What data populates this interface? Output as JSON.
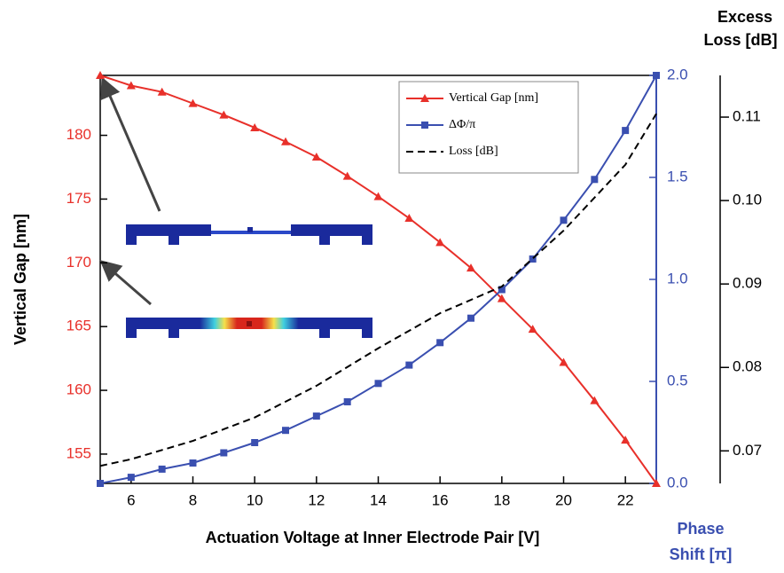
{
  "chart_data": {
    "type": "line",
    "xlabel": "Actuation Voltage at Inner Electrode Pair [V]",
    "ylabel": "Vertical Gap [nm]",
    "y2label_line1": "Phase",
    "y2label_line2": "Shift [π]",
    "y3label_line1": "Excess",
    "y3label_line2": "Loss [dB]",
    "xlim": [
      5,
      23
    ],
    "xticks": [
      6,
      8,
      10,
      12,
      14,
      16,
      18,
      20,
      22
    ],
    "ylim": [
      152.7,
      184.7
    ],
    "yticks": [
      155,
      160,
      165,
      170,
      175,
      180
    ],
    "y2lim": [
      0,
      2
    ],
    "y2ticks": [
      {
        "value": 0,
        "label": "0.0"
      },
      0.5,
      {
        "value": 1,
        "label": "1.0"
      },
      1.5,
      {
        "value": 2,
        "label": "2.0"
      }
    ],
    "y3lim": [
      0.0661,
      0.115
    ],
    "y3ticks": [
      0.07,
      0.08,
      0.09,
      0.1,
      0.11
    ],
    "y3tick_labels": [
      "0.07",
      "0.08",
      "0.09",
      "0.10",
      "0.11"
    ],
    "series": [
      {
        "name": "Vertical Gap [nm]",
        "color": "#e8302a",
        "axis": "y",
        "marker": "triangle",
        "x": [
          5,
          6,
          7,
          8,
          9,
          10,
          11,
          12,
          13,
          14,
          15,
          16,
          17,
          18,
          19,
          20,
          21,
          22,
          23
        ],
        "values": [
          184.7,
          183.9,
          183.4,
          182.5,
          181.6,
          180.6,
          179.5,
          178.3,
          176.8,
          175.2,
          173.5,
          171.6,
          169.6,
          167.2,
          164.8,
          162.2,
          159.2,
          156.1,
          152.7
        ]
      },
      {
        "name": "ΔΦ/π",
        "color": "#3a4fb0",
        "axis": "y2",
        "marker": "square",
        "x": [
          5,
          6,
          7,
          8,
          9,
          10,
          11,
          12,
          13,
          14,
          15,
          16,
          17,
          18,
          19,
          20,
          21,
          22,
          23
        ],
        "values": [
          0.0,
          0.03,
          0.07,
          0.1,
          0.15,
          0.2,
          0.26,
          0.33,
          0.4,
          0.49,
          0.58,
          0.69,
          0.81,
          0.95,
          1.1,
          1.29,
          1.49,
          1.73,
          2.0
        ]
      },
      {
        "name": "Loss [dB]",
        "color": "#000000",
        "axis": "y3",
        "marker": "none",
        "dashed": true,
        "x": [
          5,
          6,
          8,
          10,
          12,
          14,
          16,
          18,
          20,
          22,
          23
        ],
        "values": [
          0.0682,
          0.069,
          0.0712,
          0.074,
          0.0778,
          0.0823,
          0.0865,
          0.0897,
          0.0964,
          0.1043,
          0.1104
        ]
      }
    ]
  }
}
